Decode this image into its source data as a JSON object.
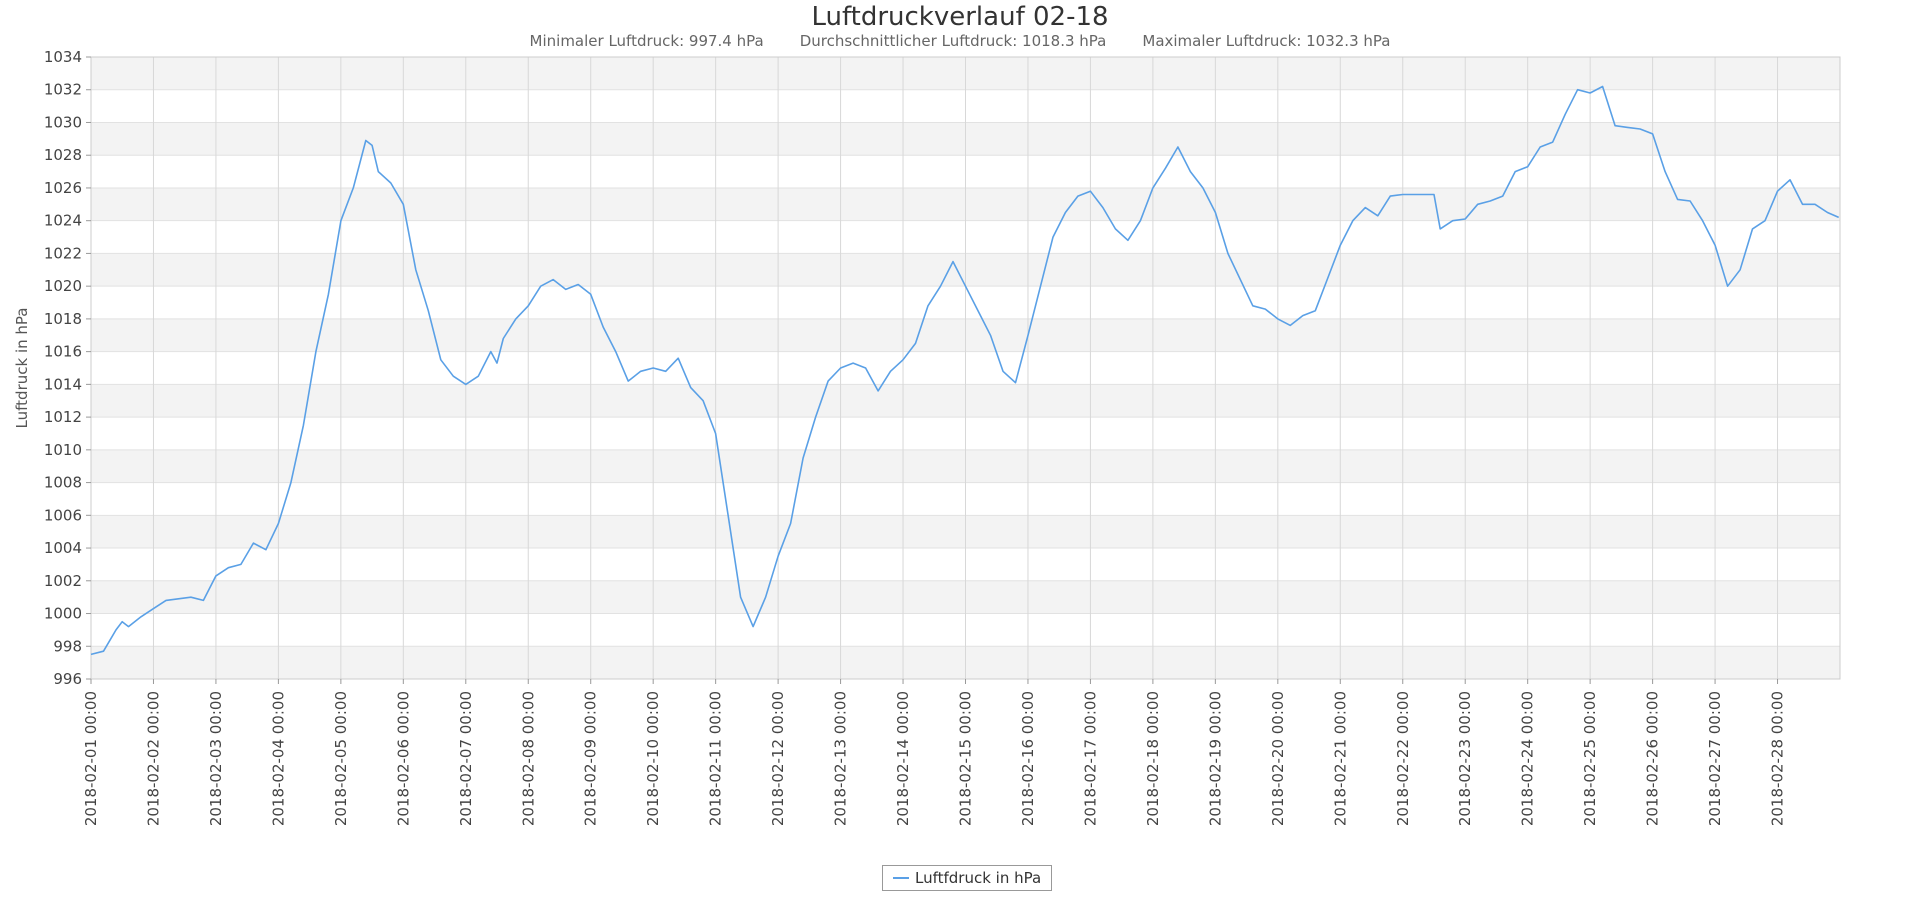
{
  "chart_data": {
    "type": "line",
    "title": "Luftdruckverlauf 02-18",
    "subtitle": {
      "min": "Minimaler Luftdruck: 997.4 hPa",
      "avg": "Durchschnittlicher Luftdruck: 1018.3 hPa",
      "max": "Maximaler Luftdruck: 1032.3 hPa"
    },
    "ylabel": "Luftdruck in hPa",
    "xlabel": "",
    "ylim": [
      996,
      1034
    ],
    "y_ticks": [
      996,
      998,
      1000,
      1002,
      1004,
      1006,
      1008,
      1010,
      1012,
      1014,
      1016,
      1018,
      1020,
      1022,
      1024,
      1026,
      1028,
      1030,
      1032,
      1034
    ],
    "x_ticks": [
      "2018-02-01 00:00",
      "2018-02-02 00:00",
      "2018-02-03 00:00",
      "2018-02-04 00:00",
      "2018-02-05 00:00",
      "2018-02-06 00:00",
      "2018-02-07 00:00",
      "2018-02-08 00:00",
      "2018-02-09 00:00",
      "2018-02-10 00:00",
      "2018-02-11 00:00",
      "2018-02-12 00:00",
      "2018-02-13 00:00",
      "2018-02-14 00:00",
      "2018-02-15 00:00",
      "2018-02-16 00:00",
      "2018-02-17 00:00",
      "2018-02-18 00:00",
      "2018-02-19 00:00",
      "2018-02-20 00:00",
      "2018-02-21 00:00",
      "2018-02-22 00:00",
      "2018-02-23 00:00",
      "2018-02-24 00:00",
      "2018-02-25 00:00",
      "2018-02-26 00:00",
      "2018-02-27 00:00",
      "2018-02-28 00:00"
    ],
    "xlim": [
      "2018-02-01 00:00",
      "2018-03-01 00:00"
    ],
    "grid": true,
    "legend_position": "bottom-center",
    "series": [
      {
        "name": "Luftfdruck in hPa",
        "color": "#5aa0e6",
        "points": [
          [
            "2018-02-01 00:00",
            997.5
          ],
          [
            "2018-02-01 04:48",
            997.7
          ],
          [
            "2018-02-01 09:36",
            999.0
          ],
          [
            "2018-02-01 12:00",
            999.5
          ],
          [
            "2018-02-01 14:24",
            999.2
          ],
          [
            "2018-02-01 19:12",
            999.8
          ],
          [
            "2018-02-02 00:00",
            1000.3
          ],
          [
            "2018-02-02 04:48",
            1000.8
          ],
          [
            "2018-02-02 09:36",
            1000.9
          ],
          [
            "2018-02-02 14:24",
            1001.0
          ],
          [
            "2018-02-02 19:12",
            1000.8
          ],
          [
            "2018-02-03 00:00",
            1002.3
          ],
          [
            "2018-02-03 04:48",
            1002.8
          ],
          [
            "2018-02-03 09:36",
            1003.0
          ],
          [
            "2018-02-03 14:24",
            1004.3
          ],
          [
            "2018-02-03 19:12",
            1003.9
          ],
          [
            "2018-02-04 00:00",
            1005.5
          ],
          [
            "2018-02-04 04:48",
            1008.0
          ],
          [
            "2018-02-04 09:36",
            1011.5
          ],
          [
            "2018-02-04 14:24",
            1016.0
          ],
          [
            "2018-02-04 19:12",
            1019.5
          ],
          [
            "2018-02-05 00:00",
            1024.0
          ],
          [
            "2018-02-05 04:48",
            1026.0
          ],
          [
            "2018-02-05 09:36",
            1028.9
          ],
          [
            "2018-02-05 12:00",
            1028.6
          ],
          [
            "2018-02-05 14:24",
            1027.0
          ],
          [
            "2018-02-05 19:12",
            1026.3
          ],
          [
            "2018-02-06 00:00",
            1025.0
          ],
          [
            "2018-02-06 04:48",
            1021.0
          ],
          [
            "2018-02-06 09:36",
            1018.5
          ],
          [
            "2018-02-06 14:24",
            1015.5
          ],
          [
            "2018-02-06 19:12",
            1014.5
          ],
          [
            "2018-02-07 00:00",
            1014.0
          ],
          [
            "2018-02-07 04:48",
            1014.5
          ],
          [
            "2018-02-07 09:36",
            1016.0
          ],
          [
            "2018-02-07 12:00",
            1015.3
          ],
          [
            "2018-02-07 14:24",
            1016.8
          ],
          [
            "2018-02-07 19:12",
            1018.0
          ],
          [
            "2018-02-08 00:00",
            1018.8
          ],
          [
            "2018-02-08 04:48",
            1020.0
          ],
          [
            "2018-02-08 09:36",
            1020.4
          ],
          [
            "2018-02-08 14:24",
            1019.8
          ],
          [
            "2018-02-08 19:12",
            1020.1
          ],
          [
            "2018-02-09 00:00",
            1019.5
          ],
          [
            "2018-02-09 04:48",
            1017.5
          ],
          [
            "2018-02-09 09:36",
            1016.0
          ],
          [
            "2018-02-09 14:24",
            1014.2
          ],
          [
            "2018-02-09 19:12",
            1014.8
          ],
          [
            "2018-02-10 00:00",
            1015.0
          ],
          [
            "2018-02-10 04:48",
            1014.8
          ],
          [
            "2018-02-10 09:36",
            1015.6
          ],
          [
            "2018-02-10 14:24",
            1013.8
          ],
          [
            "2018-02-10 19:12",
            1013.0
          ],
          [
            "2018-02-11 00:00",
            1011.0
          ],
          [
            "2018-02-11 04:48",
            1006.0
          ],
          [
            "2018-02-11 09:36",
            1001.0
          ],
          [
            "2018-02-11 14:24",
            999.2
          ],
          [
            "2018-02-11 19:12",
            1001.0
          ],
          [
            "2018-02-12 00:00",
            1003.5
          ],
          [
            "2018-02-12 04:48",
            1005.5
          ],
          [
            "2018-02-12 09:36",
            1009.5
          ],
          [
            "2018-02-12 14:24",
            1012.0
          ],
          [
            "2018-02-12 19:12",
            1014.2
          ],
          [
            "2018-02-13 00:00",
            1015.0
          ],
          [
            "2018-02-13 04:48",
            1015.3
          ],
          [
            "2018-02-13 09:36",
            1015.0
          ],
          [
            "2018-02-13 14:24",
            1013.6
          ],
          [
            "2018-02-13 19:12",
            1014.8
          ],
          [
            "2018-02-14 00:00",
            1015.5
          ],
          [
            "2018-02-14 04:48",
            1016.5
          ],
          [
            "2018-02-14 09:36",
            1018.8
          ],
          [
            "2018-02-14 14:24",
            1020.0
          ],
          [
            "2018-02-14 19:12",
            1021.5
          ],
          [
            "2018-02-15 00:00",
            1020.0
          ],
          [
            "2018-02-15 04:48",
            1018.5
          ],
          [
            "2018-02-15 09:36",
            1017.0
          ],
          [
            "2018-02-15 14:24",
            1014.8
          ],
          [
            "2018-02-15 19:12",
            1014.1
          ],
          [
            "2018-02-16 00:00",
            1017.0
          ],
          [
            "2018-02-16 04:48",
            1020.0
          ],
          [
            "2018-02-16 09:36",
            1023.0
          ],
          [
            "2018-02-16 14:24",
            1024.5
          ],
          [
            "2018-02-16 19:12",
            1025.5
          ],
          [
            "2018-02-17 00:00",
            1025.8
          ],
          [
            "2018-02-17 04:48",
            1024.8
          ],
          [
            "2018-02-17 09:36",
            1023.5
          ],
          [
            "2018-02-17 14:24",
            1022.8
          ],
          [
            "2018-02-17 19:12",
            1024.0
          ],
          [
            "2018-02-18 00:00",
            1026.0
          ],
          [
            "2018-02-18 04:48",
            1027.2
          ],
          [
            "2018-02-18 09:36",
            1028.5
          ],
          [
            "2018-02-18 14:24",
            1027.0
          ],
          [
            "2018-02-18 19:12",
            1026.0
          ],
          [
            "2018-02-19 00:00",
            1024.5
          ],
          [
            "2018-02-19 04:48",
            1022.0
          ],
          [
            "2018-02-19 14:24",
            1018.8
          ],
          [
            "2018-02-19 19:12",
            1018.6
          ],
          [
            "2018-02-20 00:00",
            1018.0
          ],
          [
            "2018-02-20 04:48",
            1017.6
          ],
          [
            "2018-02-20 09:36",
            1018.2
          ],
          [
            "2018-02-20 14:24",
            1018.5
          ],
          [
            "2018-02-20 19:12",
            1020.5
          ],
          [
            "2018-02-21 00:00",
            1022.5
          ],
          [
            "2018-02-21 04:48",
            1024.0
          ],
          [
            "2018-02-21 09:36",
            1024.8
          ],
          [
            "2018-02-21 14:24",
            1024.3
          ],
          [
            "2018-02-21 19:12",
            1025.5
          ],
          [
            "2018-02-22 00:00",
            1025.6
          ],
          [
            "2018-02-22 12:00",
            1025.6
          ],
          [
            "2018-02-22 14:24",
            1023.5
          ],
          [
            "2018-02-22 19:12",
            1024.0
          ],
          [
            "2018-02-23 00:00",
            1024.1
          ],
          [
            "2018-02-23 04:48",
            1025.0
          ],
          [
            "2018-02-23 09:36",
            1025.2
          ],
          [
            "2018-02-23 14:24",
            1025.5
          ],
          [
            "2018-02-23 19:12",
            1027.0
          ],
          [
            "2018-02-24 00:00",
            1027.3
          ],
          [
            "2018-02-24 04:48",
            1028.5
          ],
          [
            "2018-02-24 09:36",
            1028.8
          ],
          [
            "2018-02-24 14:24",
            1030.5
          ],
          [
            "2018-02-24 19:12",
            1032.0
          ],
          [
            "2018-02-25 00:00",
            1031.8
          ],
          [
            "2018-02-25 04:48",
            1032.2
          ],
          [
            "2018-02-25 09:36",
            1029.8
          ],
          [
            "2018-02-25 14:24",
            1029.7
          ],
          [
            "2018-02-25 19:12",
            1029.6
          ],
          [
            "2018-02-26 00:00",
            1029.3
          ],
          [
            "2018-02-26 04:48",
            1027.0
          ],
          [
            "2018-02-26 09:36",
            1025.3
          ],
          [
            "2018-02-26 14:24",
            1025.2
          ],
          [
            "2018-02-26 19:12",
            1024.0
          ],
          [
            "2018-02-27 00:00",
            1022.5
          ],
          [
            "2018-02-27 04:48",
            1020.0
          ],
          [
            "2018-02-27 09:36",
            1021.0
          ],
          [
            "2018-02-27 14:24",
            1023.5
          ],
          [
            "2018-02-27 19:12",
            1024.0
          ],
          [
            "2018-02-28 00:00",
            1025.8
          ],
          [
            "2018-02-28 04:48",
            1026.5
          ],
          [
            "2018-02-28 09:36",
            1025.0
          ],
          [
            "2018-02-28 14:24",
            1025.0
          ],
          [
            "2018-02-28 19:12",
            1024.5
          ],
          [
            "2018-02-28 23:30",
            1024.2
          ]
        ]
      }
    ]
  }
}
